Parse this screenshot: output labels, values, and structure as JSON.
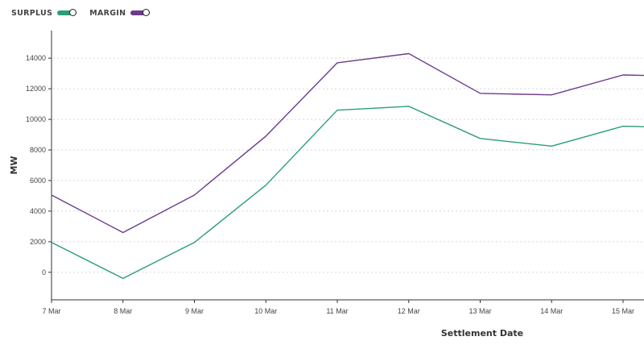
{
  "legend": {
    "items": [
      {
        "label": "SURPLUS",
        "color": "#2a9d7c"
      },
      {
        "label": "MARGIN",
        "color": "#6b3b8c"
      }
    ]
  },
  "chart_data": {
    "type": "line",
    "title": "",
    "xlabel": "Settlement Date",
    "ylabel": "MW",
    "categories": [
      "7 Mar",
      "8 Mar",
      "9 Mar",
      "10 Mar",
      "11 Mar",
      "12 Mar",
      "13 Mar",
      "14 Mar",
      "15 Mar"
    ],
    "yticks": [
      0,
      2000,
      4000,
      6000,
      8000,
      10000,
      12000,
      14000
    ],
    "ylim": [
      -1800,
      15800
    ],
    "grid": "horizontal dotted",
    "legend_position": "top-left",
    "series": [
      {
        "name": "SURPLUS",
        "color": "#2a9d7c",
        "values": [
          1950,
          -400,
          1950,
          5700,
          10600,
          10850,
          8750,
          8250,
          9550
        ],
        "tail_value": 9450
      },
      {
        "name": "MARGIN",
        "color": "#6b3b8c",
        "values": [
          5050,
          2600,
          5050,
          8900,
          13700,
          14300,
          11700,
          11600,
          12900
        ],
        "tail_value": 12800
      }
    ]
  }
}
